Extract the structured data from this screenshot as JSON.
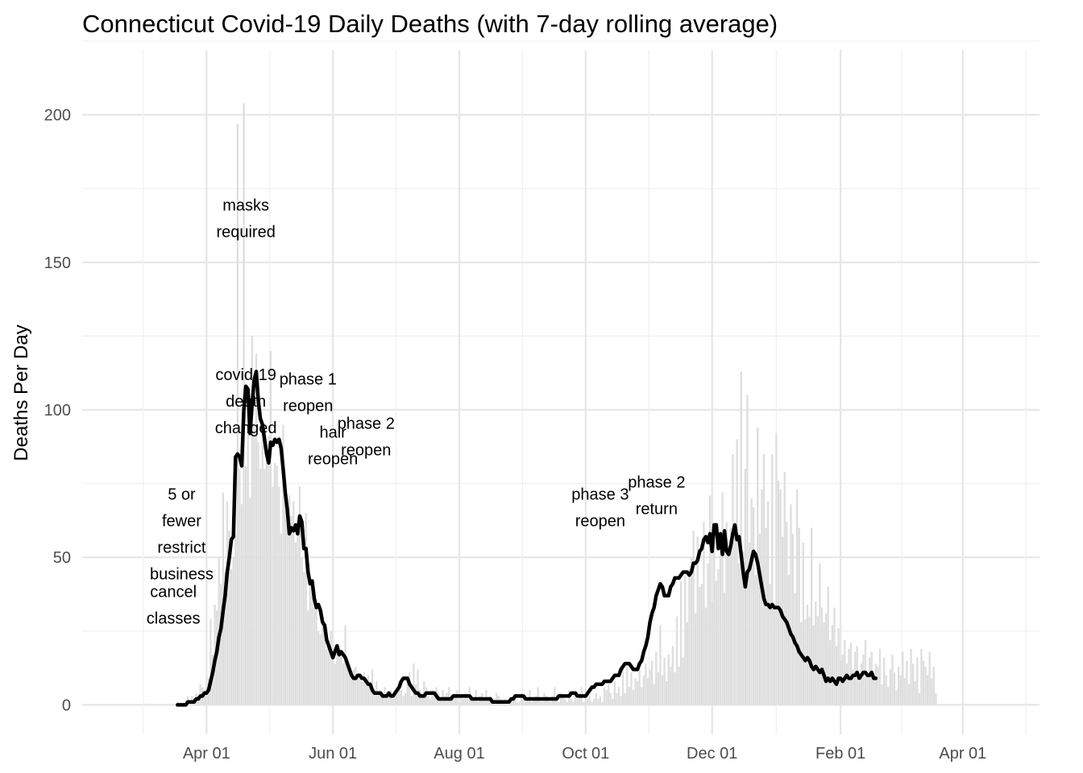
{
  "chart_data": {
    "type": "bar",
    "title": "Connecticut Covid-19 Daily Deaths (with 7-day rolling average)",
    "xlabel": "",
    "ylabel": "Deaths Per Day",
    "x_axis": {
      "type": "date",
      "range": [
        "2020-02-01",
        "2021-05-08"
      ],
      "ticks": [
        {
          "date": "2020-04-01",
          "label": "Apr 01"
        },
        {
          "date": "2020-06-01",
          "label": "Jun 01"
        },
        {
          "date": "2020-08-01",
          "label": "Aug 01"
        },
        {
          "date": "2020-10-01",
          "label": "Oct 01"
        },
        {
          "date": "2020-12-01",
          "label": "Dec 01"
        },
        {
          "date": "2021-02-01",
          "label": "Feb 01"
        },
        {
          "date": "2021-04-01",
          "label": "Apr 01"
        }
      ]
    },
    "y_axis": {
      "range": [
        -10,
        222
      ],
      "ticks": [
        0,
        50,
        100,
        150,
        200
      ]
    },
    "grid": true,
    "legend": "none",
    "colors": {
      "bars": "#dedede",
      "line": "#000000",
      "grid_major": "#e6e6e6",
      "grid_minor": "#f0f0f0",
      "tick_text": "#4d4d4d"
    },
    "series": [
      {
        "kind": "bar",
        "date_start": "2020-03-18",
        "values": [
          1,
          0,
          0,
          0,
          0,
          3,
          1,
          3,
          2,
          4,
          2,
          7,
          6,
          5,
          6,
          9,
          29,
          17,
          34,
          32,
          50,
          41,
          72,
          45,
          69,
          59,
          46,
          50,
          58,
          197,
          80,
          68,
          204,
          81,
          104,
          70,
          125,
          95,
          119,
          89,
          80,
          97,
          80,
          85,
          91,
          120,
          74,
          82,
          81,
          74,
          58,
          95,
          77,
          64,
          71,
          64,
          69,
          55,
          62,
          74,
          50,
          45,
          65,
          32,
          40,
          41,
          33,
          36,
          25,
          24,
          30,
          27,
          19,
          22,
          25,
          16,
          14,
          20,
          19,
          18,
          14,
          27,
          13,
          11,
          9,
          12,
          13,
          9,
          10,
          8,
          11,
          7,
          10,
          6,
          12,
          5,
          8,
          4,
          5,
          4,
          6,
          3,
          4,
          5,
          2,
          3,
          6,
          8,
          5,
          3,
          4,
          7,
          11,
          3,
          14,
          7,
          12,
          5,
          4,
          8,
          6,
          3,
          2,
          5,
          3,
          6,
          4,
          2,
          5,
          3,
          4,
          6,
          2,
          3,
          4,
          5,
          1,
          3,
          2,
          4,
          2,
          6,
          3,
          2,
          5,
          1,
          3,
          4,
          2,
          5,
          2,
          3,
          1,
          2,
          4,
          3,
          2,
          1,
          2,
          0,
          2,
          1,
          2,
          3,
          1,
          1,
          4,
          3,
          1,
          2,
          5,
          1,
          2,
          3,
          6,
          2,
          1,
          4,
          3,
          2,
          1,
          3,
          6,
          2,
          1,
          4,
          3,
          2,
          1,
          5,
          2,
          1,
          3,
          2,
          4,
          6,
          1,
          3,
          2,
          3,
          1,
          2,
          4,
          2,
          3,
          1,
          6,
          5,
          7,
          4,
          2,
          8,
          4,
          6,
          3,
          12,
          4,
          13,
          6,
          11,
          5,
          9,
          8,
          12,
          6,
          10,
          14,
          9,
          12,
          15,
          7,
          18,
          11,
          27,
          10,
          16,
          8,
          17,
          13,
          20,
          11,
          30,
          13,
          42,
          16,
          44,
          28,
          46,
          50,
          59,
          31,
          57,
          40,
          41,
          62,
          33,
          48,
          71,
          35,
          55,
          42,
          46,
          56,
          72,
          38,
          62,
          51,
          60,
          85,
          57,
          90,
          48,
          113,
          52,
          80,
          105,
          55,
          70,
          67,
          44,
          94,
          58,
          73,
          85,
          60,
          69,
          41,
          85,
          33,
          92,
          76,
          73,
          57,
          79,
          62,
          44,
          68,
          58,
          38,
          73,
          60,
          28,
          55,
          29,
          34,
          30,
          60,
          27,
          35,
          30,
          48,
          33,
          28,
          31,
          40,
          22,
          27,
          33,
          20,
          26,
          15,
          17,
          22,
          14,
          19,
          21,
          12,
          18,
          20,
          8,
          14,
          17,
          22,
          11,
          16,
          18,
          9,
          14,
          13,
          19,
          7,
          16,
          10,
          6,
          12,
          17,
          11,
          5,
          13,
          10,
          18,
          9,
          15,
          7,
          19,
          14,
          8,
          16,
          4,
          19,
          15,
          13,
          10,
          18,
          9,
          13,
          4
        ],
        "note": "daily deaths; one bar per day"
      },
      {
        "kind": "line",
        "date_start": "2020-03-18",
        "values": [
          0,
          0,
          0,
          0,
          0,
          1,
          1,
          1,
          1,
          2,
          2,
          3,
          3,
          4,
          4,
          5,
          8,
          11,
          15,
          18,
          23,
          26,
          32,
          37,
          45,
          50,
          56,
          57,
          84,
          85,
          84,
          81,
          100,
          108,
          107,
          92,
          102,
          110,
          113,
          103,
          97,
          95,
          90,
          85,
          82,
          89,
          88,
          90,
          89,
          90,
          87,
          80,
          72,
          66,
          58,
          60,
          59,
          61,
          58,
          64,
          62,
          53,
          53,
          45,
          41,
          42,
          36,
          33,
          34,
          32,
          28,
          27,
          22,
          20,
          18,
          16,
          18,
          20,
          17,
          18,
          17,
          16,
          14,
          12,
          10,
          9,
          9,
          10,
          10,
          9,
          9,
          8,
          7,
          7,
          5,
          4,
          4,
          4,
          4,
          3,
          3,
          3,
          4,
          3,
          3,
          4,
          5,
          6,
          8,
          9,
          9,
          9,
          7,
          6,
          5,
          4,
          4,
          3,
          3,
          3,
          4,
          4,
          4,
          4,
          4,
          3,
          2,
          2,
          2,
          2,
          2,
          2,
          2,
          3,
          3,
          3,
          3,
          3,
          3,
          3,
          3,
          3,
          2,
          2,
          2,
          2,
          2,
          2,
          2,
          2,
          2,
          2,
          1,
          1,
          1,
          1,
          1,
          1,
          1,
          1,
          1,
          2,
          2,
          3,
          3,
          3,
          3,
          3,
          2,
          2,
          2,
          2,
          2,
          2,
          2,
          2,
          2,
          2,
          2,
          2,
          2,
          2,
          2,
          2,
          3,
          3,
          3,
          3,
          3,
          3,
          4,
          4,
          4,
          3,
          3,
          3,
          3,
          3,
          4,
          5,
          6,
          6,
          7,
          7,
          7,
          7,
          8,
          8,
          8,
          8,
          9,
          10,
          10,
          10,
          12,
          13,
          14,
          14,
          14,
          13,
          12,
          12,
          12,
          14,
          15,
          18,
          20,
          23,
          28,
          31,
          33,
          37,
          39,
          41,
          40,
          37,
          37,
          37,
          40,
          41,
          43,
          43,
          43,
          44,
          45,
          45,
          45,
          44,
          45,
          48,
          48,
          49,
          52,
          53,
          56,
          57,
          55,
          58,
          52,
          61,
          61,
          53,
          58,
          51,
          59,
          52,
          51,
          54,
          58,
          61,
          56,
          57,
          51,
          45,
          40,
          45,
          46,
          49,
          52,
          51,
          48,
          44,
          40,
          36,
          34,
          34,
          33,
          34,
          33,
          33,
          33,
          32,
          30,
          29,
          28,
          26,
          24,
          23,
          21,
          20,
          18,
          17,
          16,
          15,
          16,
          15,
          13,
          12,
          13,
          12,
          11,
          12,
          10,
          8,
          9,
          8,
          9,
          8,
          7,
          9,
          9,
          8,
          9,
          10,
          9,
          9,
          10,
          10,
          11,
          9,
          10,
          11,
          11,
          10,
          10,
          11,
          9,
          9
        ],
        "note": "7-day rolling average of daily deaths"
      }
    ],
    "annotations": [
      {
        "date": "2020-03-16",
        "y": 34,
        "lines": [
          "cancel",
          "classes"
        ]
      },
      {
        "date": "2020-03-20",
        "y": 58,
        "lines": [
          "5 or",
          "fewer",
          "restrict",
          "business"
        ]
      },
      {
        "date": "2020-04-20",
        "y": 103,
        "lines": [
          "covid-19",
          "death",
          "changed"
        ]
      },
      {
        "date": "2020-04-20",
        "y": 165,
        "lines": [
          "masks",
          "required"
        ]
      },
      {
        "date": "2020-05-20",
        "y": 106,
        "lines": [
          "phase 1",
          "reopen"
        ]
      },
      {
        "date": "2020-06-01",
        "y": 88,
        "lines": [
          "hair",
          "reopen"
        ]
      },
      {
        "date": "2020-06-17",
        "y": 91,
        "lines": [
          "phase 2",
          "reopen"
        ]
      },
      {
        "date": "2020-10-08",
        "y": 67,
        "lines": [
          "phase 3",
          "reopen"
        ]
      },
      {
        "date": "2020-10-08",
        "y": 71,
        "lines": [
          "phase 2",
          "return"
        ],
        "anchor_offset": 70
      }
    ]
  }
}
